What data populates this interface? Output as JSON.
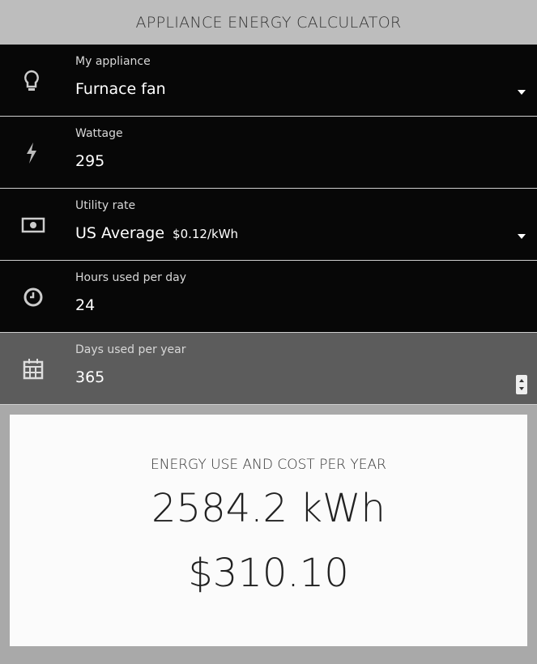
{
  "header": {
    "title": "APPLIANCE ENERGY CALCULATOR"
  },
  "fields": [
    {
      "label": "My appliance",
      "value": "Furnace fan"
    },
    {
      "label": "Wattage",
      "value": "295"
    },
    {
      "label": "Utility rate",
      "value": "US Average",
      "extra": "$0.12/kWh"
    },
    {
      "label": "Hours used per day",
      "value": "24"
    },
    {
      "label": "Days used per year",
      "value": "365"
    }
  ],
  "result": {
    "title": "ENERGY USE AND COST PER YEAR",
    "energy": "2584.2 kWh",
    "cost": "$310.10"
  }
}
